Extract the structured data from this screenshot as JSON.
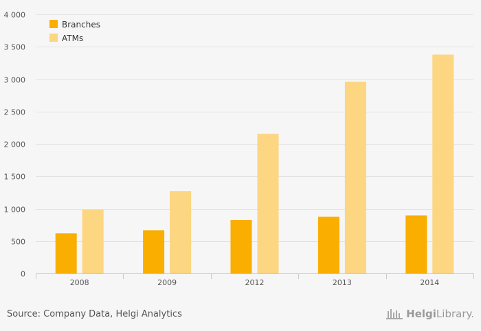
{
  "chart_data": {
    "type": "bar",
    "categories": [
      "2008",
      "2009",
      "2012",
      "2013",
      "2014"
    ],
    "series": [
      {
        "name": "Branches",
        "values": [
          620,
          665,
          825,
          875,
          895
        ],
        "color": "#f9ae00"
      },
      {
        "name": "ATMs",
        "values": [
          985,
          1270,
          2155,
          2960,
          3380
        ],
        "color": "#fcd680"
      }
    ],
    "ylim": [
      0,
      4000
    ],
    "yticks": [
      0,
      500,
      1000,
      1500,
      2000,
      2500,
      3000,
      3500,
      4000
    ],
    "ytick_labels": [
      "0",
      "500",
      "1 000",
      "1 500",
      "2 000",
      "2 500",
      "3 000",
      "3 500",
      "4 000"
    ],
    "grid": true,
    "legend_position": "top-left"
  },
  "footer": {
    "source": "Source: Company Data, Helgi Analytics",
    "brand_prefix": "Helgi",
    "brand_suffix": "Library."
  },
  "icons": {
    "brand_logo": "helgi-library-logo-icon"
  }
}
